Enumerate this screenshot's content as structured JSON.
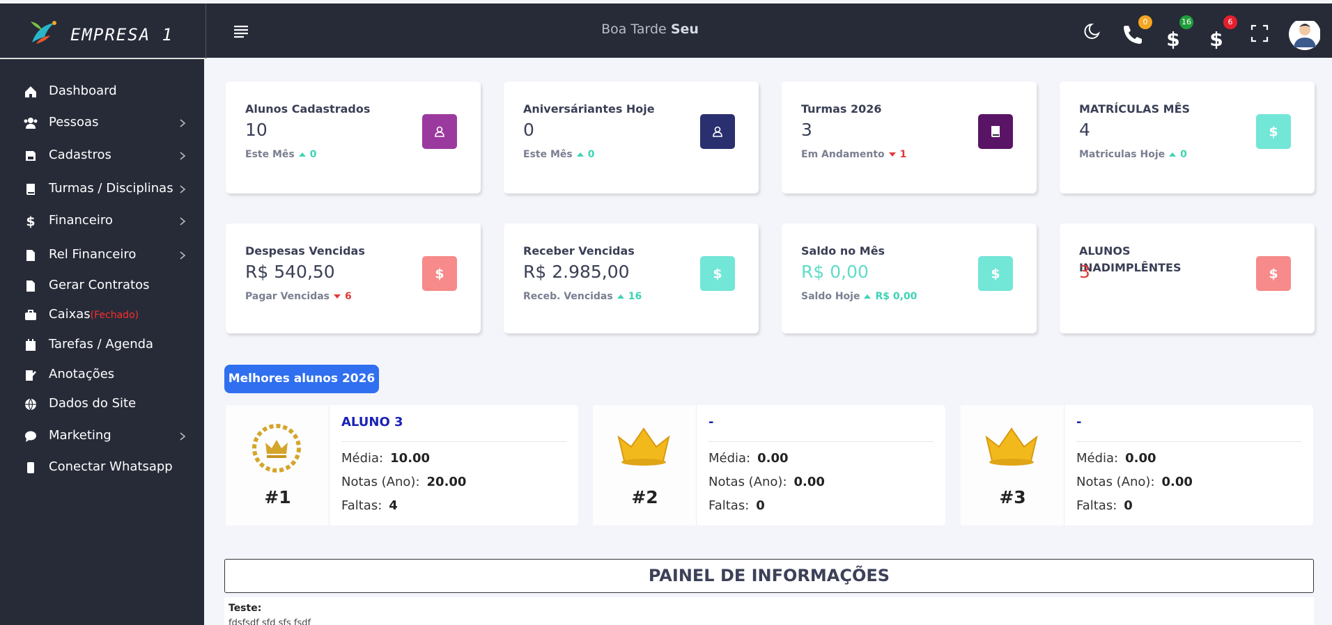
{
  "header": {
    "brand": "EMPRESA 1",
    "greeting": "Boa Tarde",
    "greeting_name": "Seu",
    "badges": [
      {
        "text": "0",
        "color": "#f5a623"
      },
      {
        "text": "16",
        "color": "#1f9d3a"
      },
      {
        "text": "6",
        "color": "#e5202e"
      }
    ]
  },
  "menu": [
    {
      "label": "Dashboard",
      "icon": "home",
      "arrow": false
    },
    {
      "label": "Pessoas",
      "icon": "users",
      "arrow": true
    },
    {
      "label": "Cadastros",
      "icon": "save",
      "arrow": true
    },
    {
      "label": "Turmas / Disciplinas",
      "icon": "book",
      "arrow": true
    },
    {
      "label": "Financeiro",
      "icon": "dollar",
      "arrow": true
    },
    {
      "label": "Rel Financeiro",
      "icon": "pdf",
      "arrow": true
    },
    {
      "label": "Gerar Contratos",
      "icon": "pdf",
      "arrow": false
    },
    {
      "label": "Caixas",
      "status": "(Fechado)",
      "icon": "case",
      "arrow": false
    },
    {
      "label": "Tarefas / Agenda",
      "icon": "cal",
      "arrow": false
    },
    {
      "label": "Anotações",
      "icon": "note",
      "arrow": false
    },
    {
      "label": "Dados do Site",
      "icon": "globe",
      "arrow": false
    },
    {
      "label": "Marketing",
      "icon": "chat",
      "arrow": true
    },
    {
      "label": "Conectar Whatsapp",
      "icon": "phone",
      "arrow": false
    }
  ],
  "cards": [
    {
      "title": "Alunos Cadastrados",
      "value": "10",
      "sub_label": "Este Mês",
      "sub_value": "0",
      "trend": "up",
      "icon": "user",
      "icon_color": "#9b3a9e"
    },
    {
      "title": "Aniversáriantes Hoje",
      "value": "0",
      "sub_label": "Este Mês",
      "sub_value": "0",
      "trend": "up",
      "icon": "user",
      "icon_color": "#2a2f70"
    },
    {
      "title": "Turmas 2026",
      "value": "3",
      "sub_label": "Em Andamento",
      "sub_value": "1",
      "trend": "down",
      "icon": "book",
      "icon_color": "#5a1466"
    },
    {
      "title": "MATRÍCULAS MÊS",
      "value": "4",
      "sub_label": "Matriculas Hoje",
      "sub_value": "0",
      "trend": "up",
      "icon": "dollar",
      "icon_color": "#72e6d7"
    },
    {
      "title": "Despesas Vencidas",
      "value": "R$ 540,50",
      "sub_label": "Pagar Vencidas",
      "sub_value": "6",
      "trend": "down",
      "icon": "dollar",
      "icon_color": "#f78a8a"
    },
    {
      "title": "Receber Vencidas",
      "value": "R$ 2.985,00",
      "sub_label": "Receb. Vencidas",
      "sub_value": "16",
      "trend": "up",
      "icon": "dollar",
      "icon_color": "#72e6d7"
    },
    {
      "title": "Saldo no Mês",
      "value": "R$ 0,00",
      "value_color": "#5fdcc8",
      "sub_label": "Saldo Hoje",
      "sub_value": "R$ 0,00",
      "trend": "up",
      "icon": "dollar",
      "icon_color": "#72e6d7"
    },
    {
      "title": "ALUNOS INADIMPLÊNTES",
      "value": "3",
      "value_color": "#e03a3a",
      "icon": "dollar",
      "icon_color": "#f78a8a"
    }
  ],
  "best": {
    "title": "Melhores alunos 2026",
    "labels": {
      "media": "Média:",
      "notas": "Notas (Ano):",
      "faltas": "Faltas:"
    },
    "students": [
      {
        "rank": "#1",
        "name": "ALUNO 3",
        "media": "10.00",
        "notas": "20.00",
        "faltas": "4",
        "emblem": "laurel"
      },
      {
        "rank": "#2",
        "name": "-",
        "media": "0.00",
        "notas": "0.00",
        "faltas": "0",
        "emblem": "crown"
      },
      {
        "rank": "#3",
        "name": "-",
        "media": "0.00",
        "notas": "0.00",
        "faltas": "0",
        "emblem": "crown"
      }
    ]
  },
  "panel": {
    "title": "PAINEL DE INFORMAÇÕES",
    "note_label": "Teste:",
    "note_text": "fdsfsdf sfd sfs fsdf"
  }
}
